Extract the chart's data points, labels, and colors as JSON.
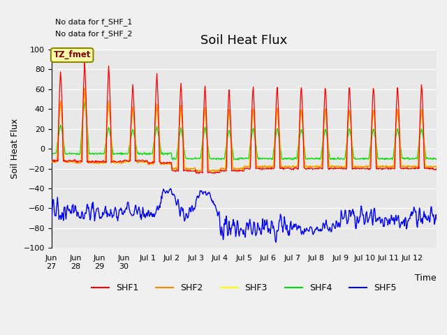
{
  "title": "Soil Heat Flux",
  "ylabel": "Soil Heat Flux",
  "xlabel": "Time",
  "annotation1": "No data for f_SHF_1",
  "annotation2": "No data for f_SHF_2",
  "box_label": "TZ_fmet",
  "ylim": [
    -100,
    100
  ],
  "colors": {
    "SHF1": "#ff0000",
    "SHF2": "#ff8800",
    "SHF3": "#ffff00",
    "SHF4": "#00dd00",
    "SHF5": "#0000ff"
  },
  "bg_color": "#e8e8e8",
  "fig_color": "#f0f0f0",
  "title_fontsize": 13,
  "label_fontsize": 9,
  "tick_fontsize": 8
}
